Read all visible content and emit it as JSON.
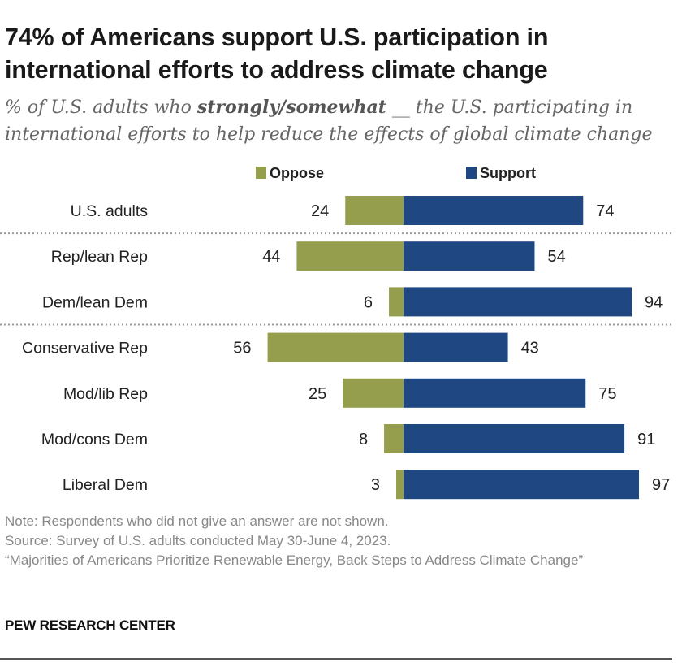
{
  "header": {
    "title": "74% of Americans support U.S. participation in international efforts to address climate change",
    "subtitle_pre": "% of U.S. adults who ",
    "subtitle_bold": "strongly/somewhat",
    "subtitle_post": " __ the U.S. participating in international efforts to help reduce the effects of global climate change"
  },
  "colors": {
    "oppose": "#949e4c",
    "support": "#1f4882",
    "separator": "#9a9a9a",
    "text": "#222222"
  },
  "chart_data": {
    "type": "bar",
    "orientation": "horizontal-diverging",
    "title": "74% of Americans support U.S. participation in international efforts to address climate change",
    "categories": [
      "U.S. adults",
      "Rep/lean Rep",
      "Dem/lean Dem",
      "Conservative Rep",
      "Mod/lib Rep",
      "Mod/cons Dem",
      "Liberal Dem"
    ],
    "series": [
      {
        "name": "Oppose",
        "values": [
          24,
          44,
          6,
          56,
          25,
          8,
          3
        ]
      },
      {
        "name": "Support",
        "values": [
          74,
          54,
          94,
          43,
          75,
          91,
          97
        ]
      }
    ],
    "legend": [
      "Oppose",
      "Support"
    ],
    "legend_position": "top",
    "groups_separated_after": [
      "U.S. adults",
      "Dem/lean Dem"
    ],
    "xlim": [
      -60,
      100
    ]
  },
  "notes": {
    "note": "Note: Respondents who did not give an answer are not shown.",
    "source": "Source: Survey of U.S. adults conducted May 30-June 4, 2023.",
    "report": "“Majorities of Americans Prioritize Renewable Energy, Back Steps to Address Climate Change”"
  },
  "brand": "PEW RESEARCH CENTER"
}
